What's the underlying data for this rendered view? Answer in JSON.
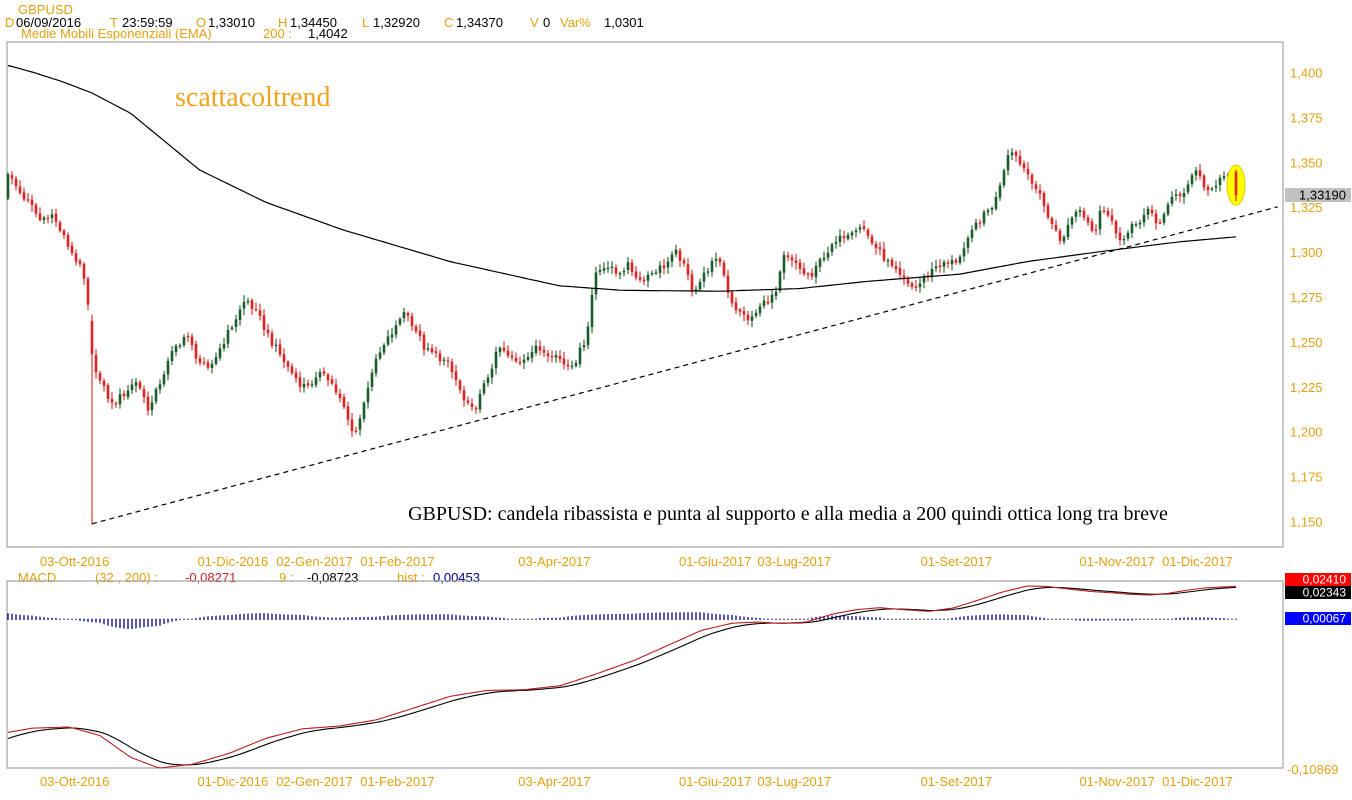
{
  "colors": {
    "accent_orange": "#e2a112",
    "watermark_orange": "#f0a41c",
    "candle_up": "#1c5c2c",
    "candle_down": "#e02222",
    "macd_line_red": "#bb1c1c",
    "macd_signal_black": "#000000",
    "hist_blue": "#00008b",
    "border_gray": "#909090",
    "price_tag_bg": "#c0c0c0",
    "tag_red_bg": "#ff0000",
    "tag_black_bg": "#000000",
    "tag_blue_bg": "#0000ff"
  },
  "header": {
    "symbol": "GBPUSD",
    "fields": [
      {
        "label": "D",
        "value": "06/09/2016"
      },
      {
        "label": "T",
        "value": "23:59:59"
      },
      {
        "label": "O",
        "value": "1,33010"
      },
      {
        "label": "H",
        "value": "1,34450"
      },
      {
        "label": "L",
        "value": "1,32920"
      },
      {
        "label": "C",
        "value": "1,34370"
      },
      {
        "label": "V",
        "value": "0"
      },
      {
        "label": "Var%",
        "value": "1,0301"
      }
    ],
    "indicator_name": "Medie Mobili Esponenziali (EMA)",
    "indicator_param": "200 :",
    "indicator_value": "1,4042"
  },
  "watermark": "scattacoltrend",
  "annotation": "GBPUSD: candela ribassista e punta al supporto e alla media a 200 quindi ottica long tra breve",
  "price_axis": {
    "labels": [
      "1,400",
      "1,375",
      "1,350",
      "1,325",
      "1,300",
      "1,275",
      "1,250",
      "1,225",
      "1,200",
      "1,175",
      "1,150"
    ],
    "values": [
      1.4,
      1.375,
      1.35,
      1.325,
      1.3,
      1.275,
      1.25,
      1.225,
      1.2,
      1.175,
      1.15
    ],
    "last_price_label": "1,33190",
    "last_price": 1.3319
  },
  "time_axis": {
    "labels": [
      "03-Ott-2016",
      "01-Dic-2016",
      "02-Gen-2017",
      "01-Feb-2017",
      "03-Apr-2017",
      "01-Giu-2017",
      "03-Lug-2017",
      "01-Set-2017",
      "01-Nov-2017",
      "01-Dic-2017"
    ],
    "fracs": [
      0.053,
      0.177,
      0.241,
      0.306,
      0.429,
      0.555,
      0.617,
      0.744,
      0.87,
      0.933
    ]
  },
  "macd_header": {
    "fields": [
      {
        "text": "MACD",
        "color": "#e2a112"
      },
      {
        "text": "(32 , 200) :",
        "color": "#e2a112"
      },
      {
        "text": "-0,08271",
        "color": "#cc2222"
      },
      {
        "text": "9 :",
        "color": "#e2a112"
      },
      {
        "text": "-0,08723",
        "color": "#000000"
      },
      {
        "text": "hist :",
        "color": "#e2a112"
      },
      {
        "text": "0,00453",
        "color": "#00008b"
      }
    ]
  },
  "macd_tags": {
    "red": {
      "text": "0,02410",
      "value": 0.0241
    },
    "black": {
      "text": "0,02343",
      "value": 0.02343
    },
    "blue": {
      "text": "0,00067",
      "value": 0.00067
    },
    "min_label": "-0,10869"
  },
  "chart_data": {
    "type": "candlestick",
    "symbol": "GBPUSD",
    "timeframe": "daily",
    "title": "GBPUSD daily with EMA(200), rising support trendline and MACD(32,200,9)",
    "price_panel": {
      "ylim": [
        1.136,
        1.417
      ],
      "yticks": [
        1.4,
        1.375,
        1.35,
        1.325,
        1.3,
        1.275,
        1.25,
        1.225,
        1.2,
        1.175,
        1.15
      ],
      "n_candles": 308,
      "close_path": [
        [
          0.0,
          1.3437
        ],
        [
          0.01,
          1.333
        ],
        [
          0.02,
          1.325
        ],
        [
          0.026,
          1.318
        ],
        [
          0.035,
          1.322
        ],
        [
          0.048,
          1.305
        ],
        [
          0.058,
          1.293
        ],
        [
          0.064,
          1.28
        ],
        [
          0.068,
          1.2435
        ],
        [
          0.075,
          1.228
        ],
        [
          0.085,
          1.215
        ],
        [
          0.095,
          1.222
        ],
        [
          0.105,
          1.229
        ],
        [
          0.115,
          1.212
        ],
        [
          0.125,
          1.23
        ],
        [
          0.135,
          1.246
        ],
        [
          0.145,
          1.2545
        ],
        [
          0.155,
          1.24
        ],
        [
          0.163,
          1.234
        ],
        [
          0.172,
          1.246
        ],
        [
          0.183,
          1.26
        ],
        [
          0.194,
          1.2745
        ],
        [
          0.205,
          1.263
        ],
        [
          0.215,
          1.25
        ],
        [
          0.228,
          1.236
        ],
        [
          0.24,
          1.2255
        ],
        [
          0.25,
          1.2285
        ],
        [
          0.258,
          1.234
        ],
        [
          0.265,
          1.2255
        ],
        [
          0.272,
          1.216
        ],
        [
          0.281,
          1.1985
        ],
        [
          0.288,
          1.21
        ],
        [
          0.295,
          1.232
        ],
        [
          0.303,
          1.244
        ],
        [
          0.31,
          1.2525
        ],
        [
          0.317,
          1.259
        ],
        [
          0.322,
          1.2685
        ],
        [
          0.33,
          1.26
        ],
        [
          0.34,
          1.2455
        ],
        [
          0.35,
          1.2425
        ],
        [
          0.358,
          1.238
        ],
        [
          0.365,
          1.2285
        ],
        [
          0.372,
          1.216
        ],
        [
          0.379,
          1.2115
        ],
        [
          0.386,
          1.2225
        ],
        [
          0.393,
          1.235
        ],
        [
          0.4,
          1.247
        ],
        [
          0.408,
          1.2415
        ],
        [
          0.415,
          1.2385
        ],
        [
          0.423,
          1.2435
        ],
        [
          0.43,
          1.2465
        ],
        [
          0.445,
          1.2435
        ],
        [
          0.455,
          1.237
        ],
        [
          0.463,
          1.2405
        ],
        [
          0.471,
          1.2535
        ],
        [
          0.478,
          1.2885
        ],
        [
          0.486,
          1.2935
        ],
        [
          0.495,
          1.2885
        ],
        [
          0.505,
          1.2925
        ],
        [
          0.515,
          1.2845
        ],
        [
          0.525,
          1.2895
        ],
        [
          0.535,
          1.293
        ],
        [
          0.545,
          1.3005
        ],
        [
          0.552,
          1.2895
        ],
        [
          0.558,
          1.279
        ],
        [
          0.565,
          1.2855
        ],
        [
          0.572,
          1.2935
        ],
        [
          0.58,
          1.2955
        ],
        [
          0.588,
          1.2745
        ],
        [
          0.595,
          1.2665
        ],
        [
          0.605,
          1.2625
        ],
        [
          0.615,
          1.272
        ],
        [
          0.625,
          1.2765
        ],
        [
          0.632,
          1.2975
        ],
        [
          0.64,
          1.294
        ],
        [
          0.648,
          1.2885
        ],
        [
          0.655,
          1.2865
        ],
        [
          0.663,
          1.298
        ],
        [
          0.672,
          1.3035
        ],
        [
          0.68,
          1.3095
        ],
        [
          0.688,
          1.3135
        ],
        [
          0.695,
          1.3155
        ],
        [
          0.703,
          1.306
        ],
        [
          0.712,
          1.2985
        ],
        [
          0.722,
          1.2895
        ],
        [
          0.732,
          1.2825
        ],
        [
          0.74,
          1.2805
        ],
        [
          0.748,
          1.2875
        ],
        [
          0.756,
          1.293
        ],
        [
          0.764,
          1.2935
        ],
        [
          0.772,
          1.2955
        ],
        [
          0.78,
          1.3035
        ],
        [
          0.788,
          1.3155
        ],
        [
          0.796,
          1.3215
        ],
        [
          0.804,
          1.3285
        ],
        [
          0.81,
          1.3445
        ],
        [
          0.816,
          1.3595
        ],
        [
          0.822,
          1.3525
        ],
        [
          0.828,
          1.3465
        ],
        [
          0.835,
          1.3395
        ],
        [
          0.842,
          1.328
        ],
        [
          0.85,
          1.3165
        ],
        [
          0.857,
          1.3065
        ],
        [
          0.864,
          1.3155
        ],
        [
          0.871,
          1.3255
        ],
        [
          0.878,
          1.3185
        ],
        [
          0.885,
          1.3115
        ],
        [
          0.89,
          1.3265
        ],
        [
          0.896,
          1.3205
        ],
        [
          0.902,
          1.3125
        ],
        [
          0.908,
          1.3065
        ],
        [
          0.915,
          1.3135
        ],
        [
          0.922,
          1.3185
        ],
        [
          0.929,
          1.3235
        ],
        [
          0.936,
          1.3145
        ],
        [
          0.943,
          1.3245
        ],
        [
          0.95,
          1.3315
        ],
        [
          0.957,
          1.3335
        ],
        [
          0.962,
          1.3395
        ],
        [
          0.967,
          1.3475
        ],
        [
          0.972,
          1.3395
        ],
        [
          0.977,
          1.3345
        ],
        [
          0.982,
          1.3335
        ],
        [
          0.987,
          1.3415
        ],
        [
          0.992,
          1.3435
        ],
        [
          0.996,
          1.339
        ],
        [
          1.0,
          1.3319
        ]
      ],
      "overrides": [
        [
          0.0,
          1.3301,
          1.3445,
          1.3292,
          1.3437
        ],
        [
          0.068,
          1.262,
          1.2655,
          1.1485,
          1.2435
        ],
        [
          0.997,
          1.339,
          1.346,
          1.337,
          1.3448
        ],
        [
          1.0,
          1.345,
          1.3462,
          1.3287,
          1.3319
        ]
      ],
      "ema200_path": [
        [
          0.0,
          1.4042
        ],
        [
          0.02,
          1.4005
        ],
        [
          0.045,
          1.395
        ],
        [
          0.068,
          1.389
        ],
        [
          0.1,
          1.3775
        ],
        [
          0.156,
          1.346
        ],
        [
          0.21,
          1.328
        ],
        [
          0.273,
          1.3126
        ],
        [
          0.36,
          1.295
        ],
        [
          0.449,
          1.2815
        ],
        [
          0.5,
          1.279
        ],
        [
          0.58,
          1.2785
        ],
        [
          0.645,
          1.28
        ],
        [
          0.7,
          1.284
        ],
        [
          0.775,
          1.288
        ],
        [
          0.83,
          1.295
        ],
        [
          0.889,
          1.3005
        ],
        [
          0.954,
          1.306
        ],
        [
          1.0,
          1.3088
        ]
      ],
      "trendline": {
        "x1_frac": 0.0684,
        "p1": 1.149,
        "x2_frac": 1.034,
        "p2": 1.3255,
        "style": "dashed"
      },
      "highlight_ellipse": {
        "x_frac": 1.0,
        "p_center": 1.3376,
        "p_half": 0.0112
      }
    },
    "macd_panel": {
      "ylim": [
        -0.1087,
        0.028
      ],
      "min_tick": -0.10869,
      "macd_path": [
        [
          0.0,
          -0.0827
        ],
        [
          0.02,
          -0.0795
        ],
        [
          0.05,
          -0.0788
        ],
        [
          0.075,
          -0.085
        ],
        [
          0.1,
          -0.101
        ],
        [
          0.123,
          -0.1087
        ],
        [
          0.15,
          -0.106
        ],
        [
          0.18,
          -0.098
        ],
        [
          0.21,
          -0.087
        ],
        [
          0.24,
          -0.08
        ],
        [
          0.27,
          -0.078
        ],
        [
          0.3,
          -0.0735
        ],
        [
          0.33,
          -0.065
        ],
        [
          0.36,
          -0.0563
        ],
        [
          0.39,
          -0.052
        ],
        [
          0.42,
          -0.0515
        ],
        [
          0.45,
          -0.0485
        ],
        [
          0.48,
          -0.0396
        ],
        [
          0.51,
          -0.03
        ],
        [
          0.54,
          -0.018
        ],
        [
          0.565,
          -0.008
        ],
        [
          0.59,
          -0.0028
        ],
        [
          0.61,
          -0.002
        ],
        [
          0.63,
          -0.003
        ],
        [
          0.65,
          -0.002
        ],
        [
          0.67,
          0.0035
        ],
        [
          0.69,
          0.007
        ],
        [
          0.71,
          0.0085
        ],
        [
          0.73,
          0.007
        ],
        [
          0.75,
          0.0058
        ],
        [
          0.77,
          0.0083
        ],
        [
          0.79,
          0.014
        ],
        [
          0.81,
          0.02
        ],
        [
          0.83,
          0.0243
        ],
        [
          0.845,
          0.0241
        ],
        [
          0.86,
          0.0225
        ],
        [
          0.88,
          0.0205
        ],
        [
          0.9,
          0.0193
        ],
        [
          0.915,
          0.0182
        ],
        [
          0.93,
          0.0178
        ],
        [
          0.945,
          0.019
        ],
        [
          0.96,
          0.0213
        ],
        [
          0.975,
          0.023
        ],
        [
          1.0,
          0.0241
        ]
      ],
      "signal_ema_alpha": 0.2,
      "signal_start": -0.0872
    }
  }
}
